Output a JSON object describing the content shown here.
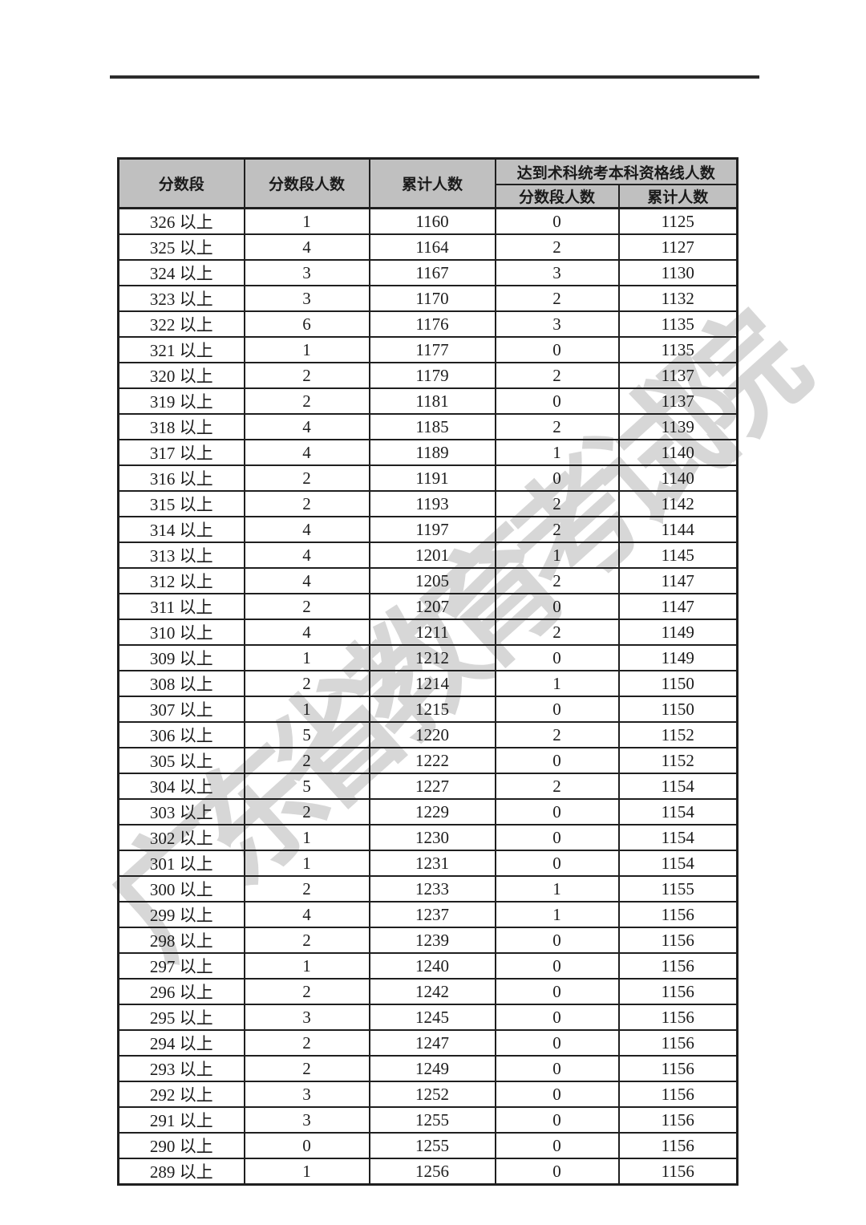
{
  "page": {
    "background_color": "#ffffff",
    "top_rule_color": "#2c2c2c"
  },
  "watermark": {
    "text": "广东省教育考试院",
    "color": "#c9c9c9"
  },
  "table": {
    "header_bg_color": "#c0c0c0",
    "header": {
      "score_range": "分数段",
      "seg_count": "分数段人数",
      "cumulative": "累计人数",
      "qualified_group": "达到术科统考本科资格线人数",
      "qualified_seg_count": "分数段人数",
      "qualified_cumulative": "累计人数"
    },
    "rows": [
      [
        "326 以上",
        "1",
        "1160",
        "0",
        "1125"
      ],
      [
        "325 以上",
        "4",
        "1164",
        "2",
        "1127"
      ],
      [
        "324 以上",
        "3",
        "1167",
        "3",
        "1130"
      ],
      [
        "323 以上",
        "3",
        "1170",
        "2",
        "1132"
      ],
      [
        "322 以上",
        "6",
        "1176",
        "3",
        "1135"
      ],
      [
        "321 以上",
        "1",
        "1177",
        "0",
        "1135"
      ],
      [
        "320 以上",
        "2",
        "1179",
        "2",
        "1137"
      ],
      [
        "319 以上",
        "2",
        "1181",
        "0",
        "1137"
      ],
      [
        "318 以上",
        "4",
        "1185",
        "2",
        "1139"
      ],
      [
        "317 以上",
        "4",
        "1189",
        "1",
        "1140"
      ],
      [
        "316 以上",
        "2",
        "1191",
        "0",
        "1140"
      ],
      [
        "315 以上",
        "2",
        "1193",
        "2",
        "1142"
      ],
      [
        "314 以上",
        "4",
        "1197",
        "2",
        "1144"
      ],
      [
        "313 以上",
        "4",
        "1201",
        "1",
        "1145"
      ],
      [
        "312 以上",
        "4",
        "1205",
        "2",
        "1147"
      ],
      [
        "311 以上",
        "2",
        "1207",
        "0",
        "1147"
      ],
      [
        "310 以上",
        "4",
        "1211",
        "2",
        "1149"
      ],
      [
        "309 以上",
        "1",
        "1212",
        "0",
        "1149"
      ],
      [
        "308 以上",
        "2",
        "1214",
        "1",
        "1150"
      ],
      [
        "307 以上",
        "1",
        "1215",
        "0",
        "1150"
      ],
      [
        "306 以上",
        "5",
        "1220",
        "2",
        "1152"
      ],
      [
        "305 以上",
        "2",
        "1222",
        "0",
        "1152"
      ],
      [
        "304 以上",
        "5",
        "1227",
        "2",
        "1154"
      ],
      [
        "303 以上",
        "2",
        "1229",
        "0",
        "1154"
      ],
      [
        "302 以上",
        "1",
        "1230",
        "0",
        "1154"
      ],
      [
        "301 以上",
        "1",
        "1231",
        "0",
        "1154"
      ],
      [
        "300 以上",
        "2",
        "1233",
        "1",
        "1155"
      ],
      [
        "299 以上",
        "4",
        "1237",
        "1",
        "1156"
      ],
      [
        "298 以上",
        "2",
        "1239",
        "0",
        "1156"
      ],
      [
        "297 以上",
        "1",
        "1240",
        "0",
        "1156"
      ],
      [
        "296 以上",
        "2",
        "1242",
        "0",
        "1156"
      ],
      [
        "295 以上",
        "3",
        "1245",
        "0",
        "1156"
      ],
      [
        "294 以上",
        "2",
        "1247",
        "0",
        "1156"
      ],
      [
        "293 以上",
        "2",
        "1249",
        "0",
        "1156"
      ],
      [
        "292 以上",
        "3",
        "1252",
        "0",
        "1156"
      ],
      [
        "291 以上",
        "3",
        "1255",
        "0",
        "1156"
      ],
      [
        "290 以上",
        "0",
        "1255",
        "0",
        "1156"
      ],
      [
        "289 以上",
        "1",
        "1256",
        "0",
        "1156"
      ]
    ]
  }
}
